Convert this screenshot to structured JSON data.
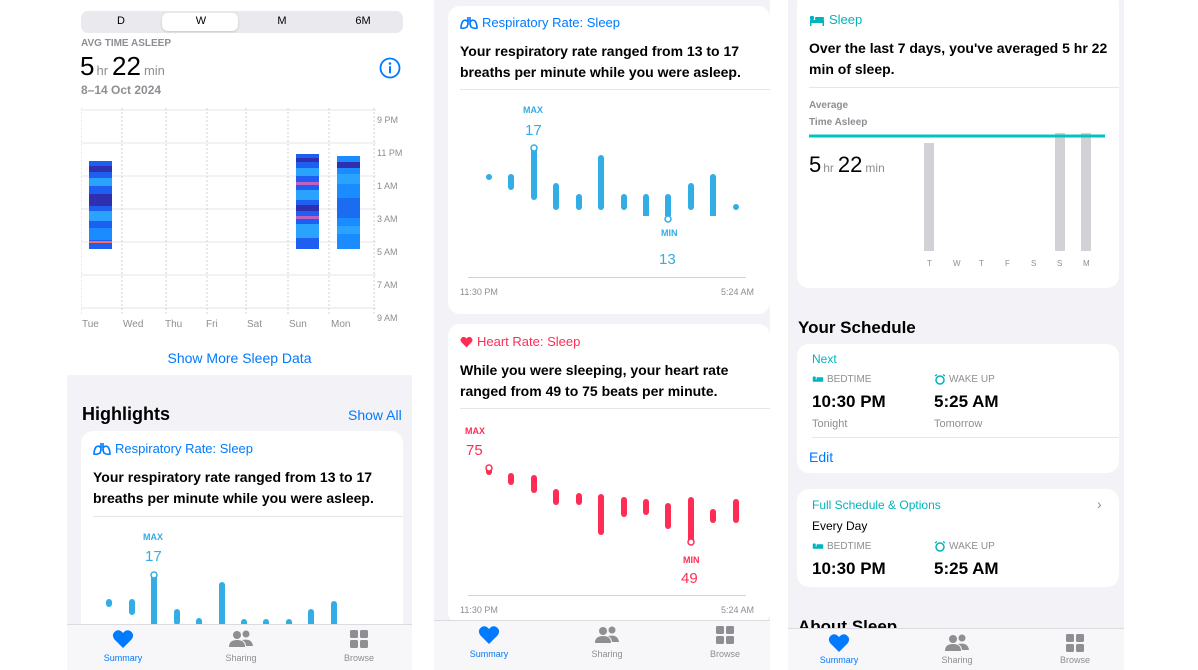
{
  "panel1": {
    "segments": [
      "D",
      "W",
      "M",
      "6M"
    ],
    "selected_segment": "W",
    "avg_label": "AVG TIME ASLEEP",
    "avg_hr": "5",
    "avg_hr_unit": "hr",
    "avg_min": "22",
    "avg_min_unit": "min",
    "date_range": "8–14 Oct 2024",
    "time_labels": [
      "9 PM",
      "11 PM",
      "1 AM",
      "3 AM",
      "5 AM",
      "7 AM",
      "9 AM"
    ],
    "day_labels": [
      "Tue",
      "Wed",
      "Thu",
      "Fri",
      "Sat",
      "Sun",
      "Mon"
    ],
    "show_more": "Show More Sleep Data",
    "highlights_title": "Highlights",
    "show_all": "Show All",
    "card_title": "Respiratory Rate: Sleep",
    "card_desc": "Your respiratory rate ranged from 13 to 17 breaths per minute while you were asleep.",
    "max_label": "MAX",
    "max_value": "17"
  },
  "panel2": {
    "resp_title": "Respiratory Rate: Sleep",
    "resp_desc": "Your respiratory rate ranged from 13 to 17 breaths per minute while you were asleep.",
    "resp_max_label": "MAX",
    "resp_max_value": "17",
    "resp_min_label": "MIN",
    "resp_min_value": "13",
    "resp_start": "11:30 PM",
    "resp_end": "5:24 AM",
    "heart_title": "Heart Rate: Sleep",
    "heart_desc": "While you were sleeping, your heart rate ranged from 49 to 75 beats per minute.",
    "heart_max_label": "MAX",
    "heart_max_value": "75",
    "heart_min_label": "MIN",
    "heart_min_value": "49",
    "heart_start": "11:30 PM",
    "heart_end": "5:24 AM"
  },
  "panel3": {
    "sleep_title": "Sleep",
    "sleep_desc": "Over the last 7 days, you've averaged 5 hr 22 min of sleep.",
    "average_label": "Average",
    "time_asleep_label": "Time Asleep",
    "avg_hr": "5",
    "avg_hr_unit": "hr",
    "avg_min": "22",
    "avg_min_unit": "min",
    "weekday_labels": [
      "T",
      "W",
      "T",
      "F",
      "S",
      "S",
      "M"
    ],
    "schedule_title": "Your Schedule",
    "next_label": "Next",
    "bedtime_label": "BEDTIME",
    "wakeup_label": "WAKE UP",
    "bedtime_value": "10:30 PM",
    "wakeup_value": "5:25 AM",
    "bedtime_when": "Tonight",
    "wakeup_when": "Tomorrow",
    "edit_label": "Edit",
    "full_schedule": "Full Schedule & Options",
    "every_day": "Every Day",
    "bedtime_label2": "BEDTIME",
    "wakeup_label2": "WAKE UP",
    "bedtime_value2": "10:30 PM",
    "wakeup_value2": "5:25 AM",
    "about_sleep": "About Sleep"
  },
  "tabs": {
    "summary": "Summary",
    "sharing": "Sharing",
    "browse": "Browse"
  },
  "colors": {
    "accent": "#007aff",
    "teal": "#00b4be",
    "heart": "#ff2d55",
    "resp_bar": "#32ade6"
  }
}
